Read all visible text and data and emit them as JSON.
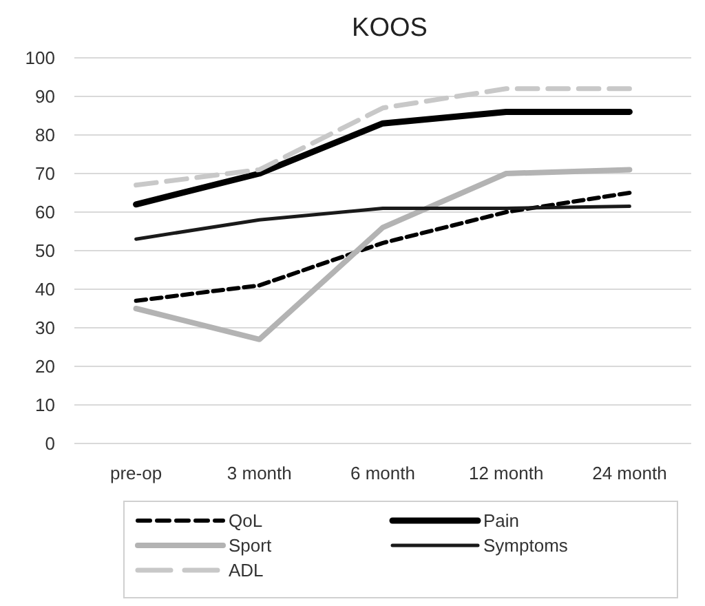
{
  "chart_data": {
    "type": "line",
    "title": "KOOS",
    "categories": [
      "pre-op",
      "3 month",
      "6 month",
      "12 month",
      "24 month"
    ],
    "series": [
      {
        "name": "QoL",
        "color": "#000000",
        "line_style": "dashed",
        "values": [
          37,
          41,
          52,
          60,
          65
        ]
      },
      {
        "name": "Pain",
        "color": "#000000",
        "values": [
          62,
          70,
          83,
          86,
          86
        ]
      },
      {
        "name": "Sport",
        "color": "#b3b3b3",
        "values": [
          35,
          27,
          56,
          70,
          71
        ]
      },
      {
        "name": "Symptoms",
        "color": "#1a1a1a",
        "values": [
          53,
          58,
          61,
          61,
          61.5
        ]
      },
      {
        "name": "ADL",
        "color": "#c8c8c8",
        "line_style": "dashed",
        "values": [
          67,
          71,
          87,
          92,
          92
        ]
      }
    ],
    "ylim": [
      0,
      100
    ],
    "yticks": [
      0,
      10,
      20,
      30,
      40,
      50,
      60,
      70,
      80,
      90,
      100
    ],
    "grid": "y",
    "legend": "bottom",
    "marker": "none",
    "line_style": "solid"
  }
}
